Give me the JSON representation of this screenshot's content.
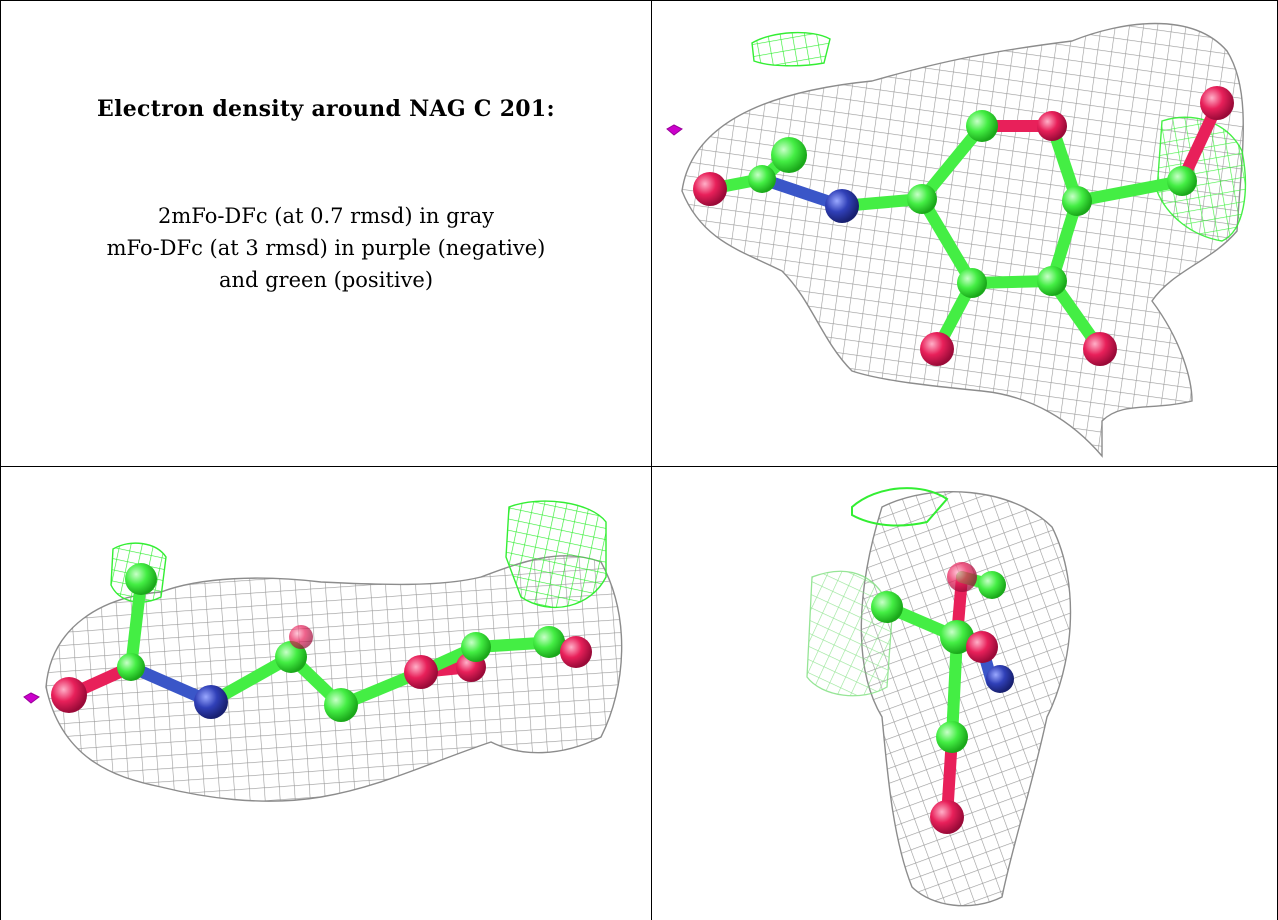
{
  "caption": {
    "title": "Electron density around NAG C 201:",
    "line1": "2mFo-DFc (at 0.7 rmsd) in gray",
    "line2": "mFo-DFc (at 3 rmsd) in purple (negative)",
    "line3": "and green (positive)"
  },
  "colors": {
    "mesh_2fofc": "#b5b5b5",
    "mesh_positive": "#33ee33",
    "mesh_negative": "#cc00cc",
    "carbon": "#44ee44",
    "oxygen": "#e8205a",
    "nitrogen": "#3040b8"
  },
  "panels": [
    {
      "view": "top",
      "icon": "density-view-top-icon"
    },
    {
      "view": "side",
      "icon": "density-view-side-icon"
    },
    {
      "view": "end",
      "icon": "density-view-end-icon"
    }
  ]
}
